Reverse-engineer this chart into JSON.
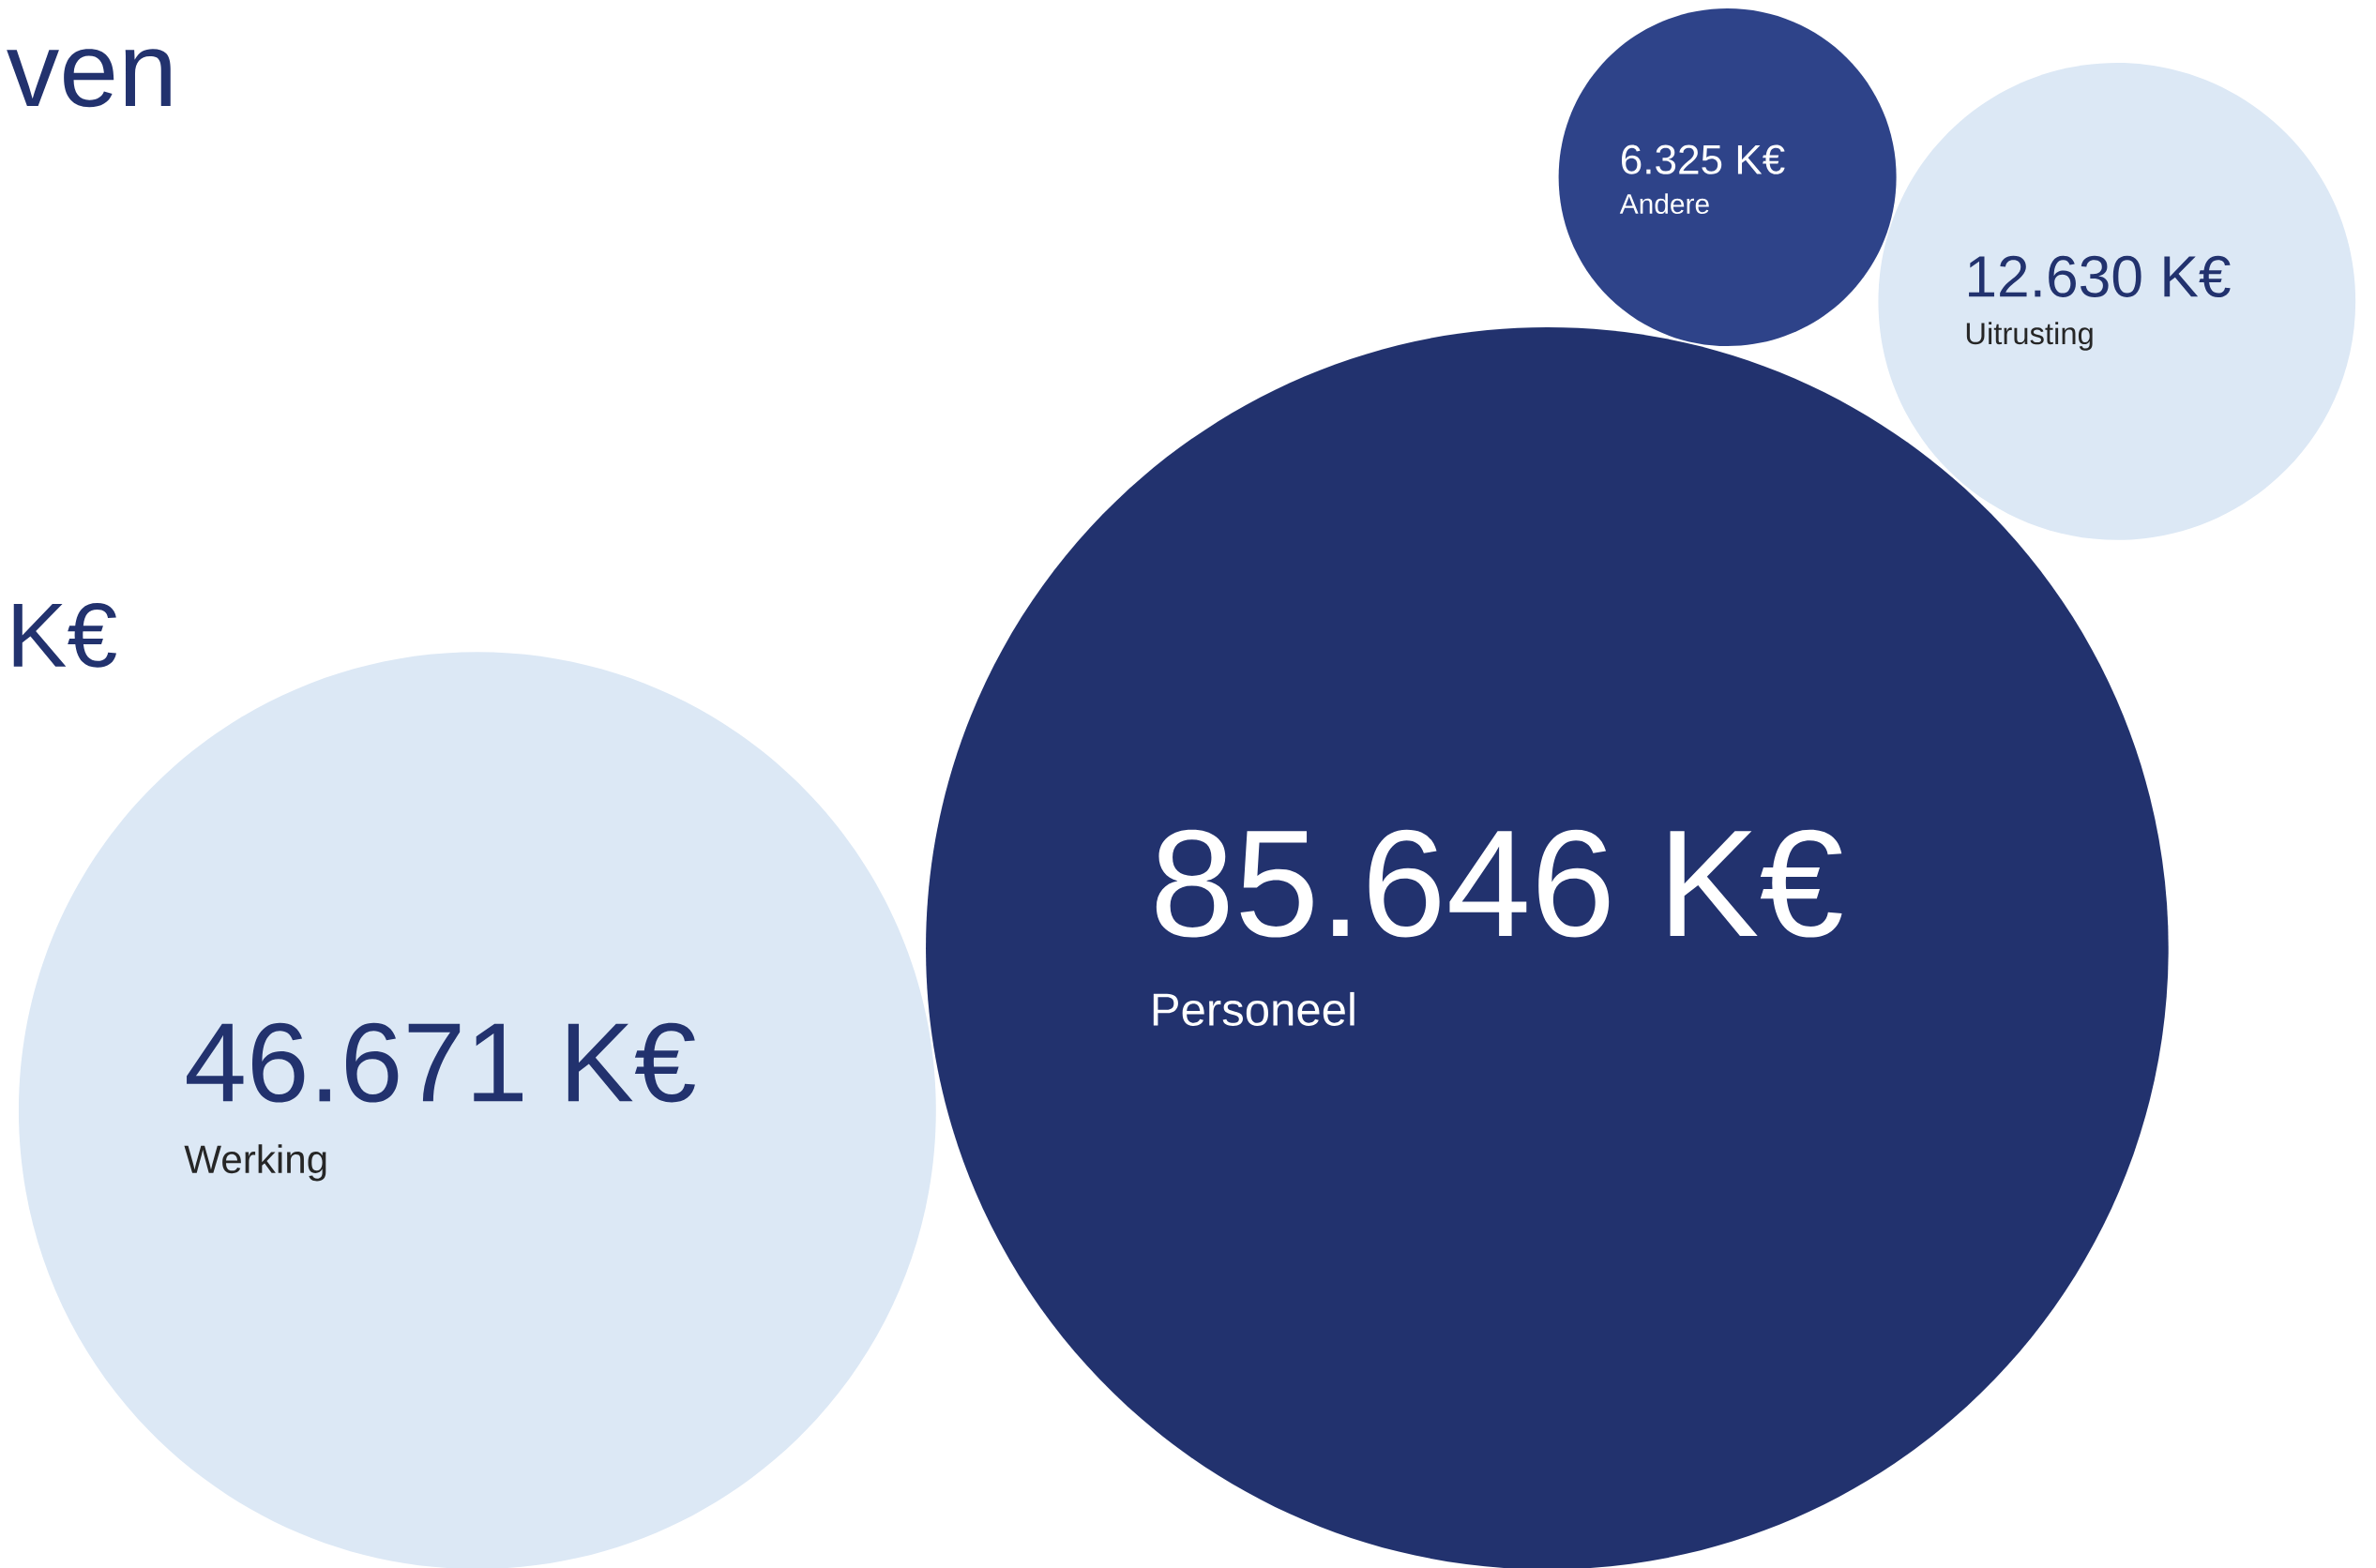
{
  "chart_data": {
    "type": "other",
    "categories": [
      "Personeel",
      "Werking",
      "Uitrusting",
      "Andere"
    ],
    "values": [
      85646,
      46671,
      12630,
      6325
    ],
    "value_labels": [
      "85.646 K€",
      "46.671 K€",
      "12.630 K€",
      "6.325 K€"
    ],
    "colors": [
      "#22326e",
      "#dce8f5",
      "#dce8f5",
      "#2e4389"
    ],
    "annotations": [
      "ven",
      "K€"
    ]
  }
}
